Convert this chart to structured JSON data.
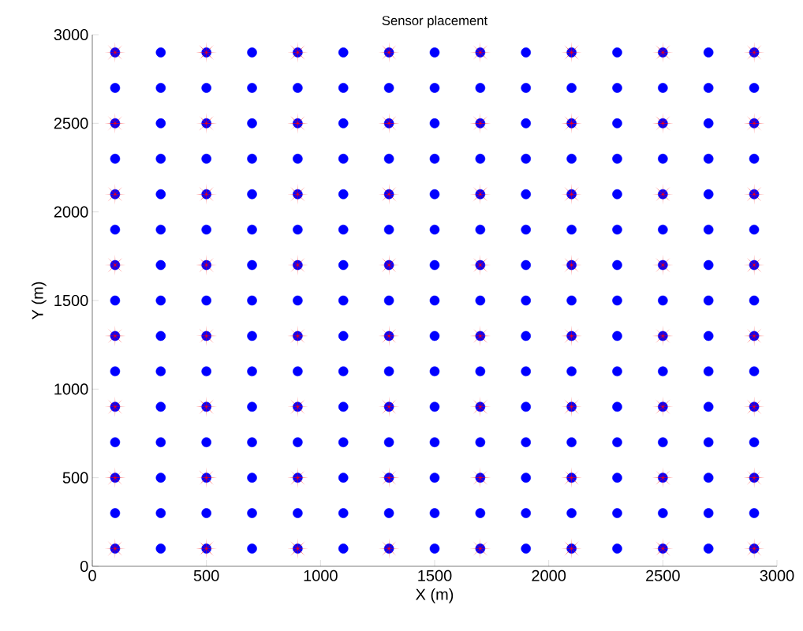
{
  "chart_data": {
    "type": "scatter",
    "title": "Sensor placement",
    "xlabel": "X (m)",
    "ylabel": "Y (m)",
    "xlim": [
      0,
      3000
    ],
    "ylim": [
      0,
      3000
    ],
    "xticks": [
      0,
      500,
      1000,
      1500,
      2000,
      2500,
      3000
    ],
    "yticks": [
      0,
      500,
      1000,
      1500,
      2000,
      2500,
      3000
    ],
    "grid": false,
    "series": [
      {
        "color": "#0000ff",
        "marker": "circle",
        "x": [
          100,
          300,
          500,
          700,
          900,
          1100,
          1300,
          1500,
          1700,
          1900,
          2100,
          2300,
          2500,
          2700,
          2900,
          100,
          300,
          500,
          700,
          900,
          1100,
          1300,
          1500,
          1700,
          1900,
          2100,
          2300,
          2500,
          2700,
          2900,
          100,
          300,
          500,
          700,
          900,
          1100,
          1300,
          1500,
          1700,
          1900,
          2100,
          2300,
          2500,
          2700,
          2900,
          100,
          300,
          500,
          700,
          900,
          1100,
          1300,
          1500,
          1700,
          1900,
          2100,
          2300,
          2500,
          2700,
          2900,
          100,
          300,
          500,
          700,
          900,
          1100,
          1300,
          1500,
          1700,
          1900,
          2100,
          2300,
          2500,
          2700,
          2900,
          100,
          300,
          500,
          700,
          900,
          1100,
          1300,
          1500,
          1700,
          1900,
          2100,
          2300,
          2500,
          2700,
          2900,
          100,
          300,
          500,
          700,
          900,
          1100,
          1300,
          1500,
          1700,
          1900,
          2100,
          2300,
          2500,
          2700,
          2900,
          100,
          300,
          500,
          700,
          900,
          1100,
          1300,
          1500,
          1700,
          1900,
          2100,
          2300,
          2500,
          2700,
          2900,
          100,
          300,
          500,
          700,
          900,
          1100,
          1300,
          1500,
          1700,
          1900,
          2100,
          2300,
          2500,
          2700,
          2900,
          100,
          300,
          500,
          700,
          900,
          1100,
          1300,
          1500,
          1700,
          1900,
          2100,
          2300,
          2500,
          2700,
          2900,
          100,
          300,
          500,
          700,
          900,
          1100,
          1300,
          1500,
          1700,
          1900,
          2100,
          2300,
          2500,
          2700,
          2900,
          100,
          300,
          500,
          700,
          900,
          1100,
          1300,
          1500,
          1700,
          1900,
          2100,
          2300,
          2500,
          2700,
          2900,
          100,
          300,
          500,
          700,
          900,
          1100,
          1300,
          1500,
          1700,
          1900,
          2100,
          2300,
          2500,
          2700,
          2900,
          100,
          300,
          500,
          700,
          900,
          1100,
          1300,
          1500,
          1700,
          1900,
          2100,
          2300,
          2500,
          2700,
          2900,
          100,
          300,
          500,
          700,
          900,
          1100,
          1300,
          1500,
          1700,
          1900,
          2100,
          2300,
          2500,
          2700,
          2900
        ],
        "values": [
          100,
          100,
          100,
          100,
          100,
          100,
          100,
          100,
          100,
          100,
          100,
          100,
          100,
          100,
          100,
          300,
          300,
          300,
          300,
          300,
          300,
          300,
          300,
          300,
          300,
          300,
          300,
          300,
          300,
          300,
          500,
          500,
          500,
          500,
          500,
          500,
          500,
          500,
          500,
          500,
          500,
          500,
          500,
          500,
          500,
          700,
          700,
          700,
          700,
          700,
          700,
          700,
          700,
          700,
          700,
          700,
          700,
          700,
          700,
          700,
          900,
          900,
          900,
          900,
          900,
          900,
          900,
          900,
          900,
          900,
          900,
          900,
          900,
          900,
          900,
          1100,
          1100,
          1100,
          1100,
          1100,
          1100,
          1100,
          1100,
          1100,
          1100,
          1100,
          1100,
          1100,
          1100,
          1100,
          1300,
          1300,
          1300,
          1300,
          1300,
          1300,
          1300,
          1300,
          1300,
          1300,
          1300,
          1300,
          1300,
          1300,
          1300,
          1500,
          1500,
          1500,
          1500,
          1500,
          1500,
          1500,
          1500,
          1500,
          1500,
          1500,
          1500,
          1500,
          1500,
          1500,
          1700,
          1700,
          1700,
          1700,
          1700,
          1700,
          1700,
          1700,
          1700,
          1700,
          1700,
          1700,
          1700,
          1700,
          1700,
          1900,
          1900,
          1900,
          1900,
          1900,
          1900,
          1900,
          1900,
          1900,
          1900,
          1900,
          1900,
          1900,
          1900,
          1900,
          2100,
          2100,
          2100,
          2100,
          2100,
          2100,
          2100,
          2100,
          2100,
          2100,
          2100,
          2100,
          2100,
          2100,
          2100,
          2300,
          2300,
          2300,
          2300,
          2300,
          2300,
          2300,
          2300,
          2300,
          2300,
          2300,
          2300,
          2300,
          2300,
          2300,
          2500,
          2500,
          2500,
          2500,
          2500,
          2500,
          2500,
          2500,
          2500,
          2500,
          2500,
          2500,
          2500,
          2500,
          2500,
          2700,
          2700,
          2700,
          2700,
          2700,
          2700,
          2700,
          2700,
          2700,
          2700,
          2700,
          2700,
          2700,
          2700,
          2700,
          2900,
          2900,
          2900,
          2900,
          2900,
          2900,
          2900,
          2900,
          2900,
          2900,
          2900,
          2900,
          2900,
          2900,
          2900
        ]
      },
      {
        "color": "#ff0000",
        "marker": "star",
        "x": [
          100,
          500,
          900,
          1300,
          1700,
          2100,
          2500,
          2900,
          100,
          500,
          900,
          1300,
          1700,
          2100,
          2500,
          2900,
          100,
          500,
          900,
          1300,
          1700,
          2100,
          2500,
          2900,
          100,
          500,
          900,
          1300,
          1700,
          2100,
          2500,
          2900,
          100,
          500,
          900,
          1300,
          1700,
          2100,
          2500,
          2900,
          100,
          500,
          900,
          1300,
          1700,
          2100,
          2500,
          2900,
          100,
          500,
          900,
          1300,
          1700,
          2100,
          2500,
          2900,
          100,
          500,
          900,
          1300,
          1700,
          2100,
          2500,
          2900
        ],
        "values": [
          100,
          100,
          100,
          100,
          100,
          100,
          100,
          100,
          500,
          500,
          500,
          500,
          500,
          500,
          500,
          500,
          900,
          900,
          900,
          900,
          900,
          900,
          900,
          900,
          1300,
          1300,
          1300,
          1300,
          1300,
          1300,
          1300,
          1300,
          1700,
          1700,
          1700,
          1700,
          1700,
          1700,
          1700,
          1700,
          2100,
          2100,
          2100,
          2100,
          2100,
          2100,
          2100,
          2100,
          2500,
          2500,
          2500,
          2500,
          2500,
          2500,
          2500,
          2500,
          2900,
          2900,
          2900,
          2900,
          2900,
          2900,
          2900,
          2900
        ]
      }
    ]
  }
}
